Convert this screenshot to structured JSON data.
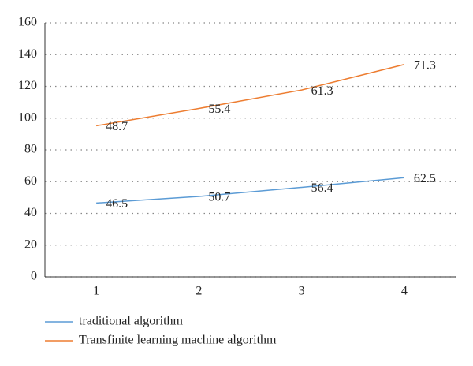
{
  "chart_data": {
    "type": "line",
    "stacked": true,
    "categories": [
      "1",
      "2",
      "3",
      "4"
    ],
    "series": [
      {
        "name": "traditional algorithm",
        "color": "#5b9bd5",
        "values": [
          46.5,
          50.7,
          56.4,
          62.5
        ]
      },
      {
        "name": "Transfinite learning machine algorithm",
        "color": "#ed7d31",
        "values": [
          48.7,
          55.4,
          61.3,
          71.3
        ]
      }
    ],
    "ylim": [
      0,
      160
    ],
    "yticks": [
      0,
      20,
      40,
      60,
      80,
      100,
      120,
      140,
      160
    ],
    "grid": true,
    "legend": "bottom"
  }
}
